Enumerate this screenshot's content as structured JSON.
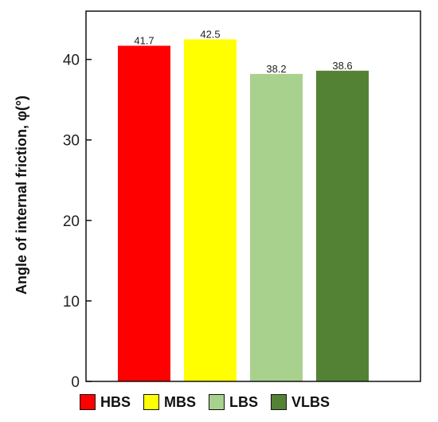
{
  "chart_data": {
    "type": "bar",
    "title": "",
    "xlabel": "",
    "ylabel": "Angle of internal friction, φ(°)",
    "ylim": [
      0,
      46
    ],
    "yticks": [
      0,
      10,
      20,
      30,
      40
    ],
    "grid": false,
    "legend_position": "bottom",
    "categories": [
      "HBS",
      "MBS",
      "LBS",
      "VLBS"
    ],
    "values": [
      41.7,
      42.5,
      38.2,
      38.6
    ],
    "value_labels": [
      "41.7",
      "42.5",
      "38.2",
      "38.6"
    ],
    "colors": [
      "#ff0000",
      "#ffff00",
      "#a9d18e",
      "#548235"
    ]
  }
}
